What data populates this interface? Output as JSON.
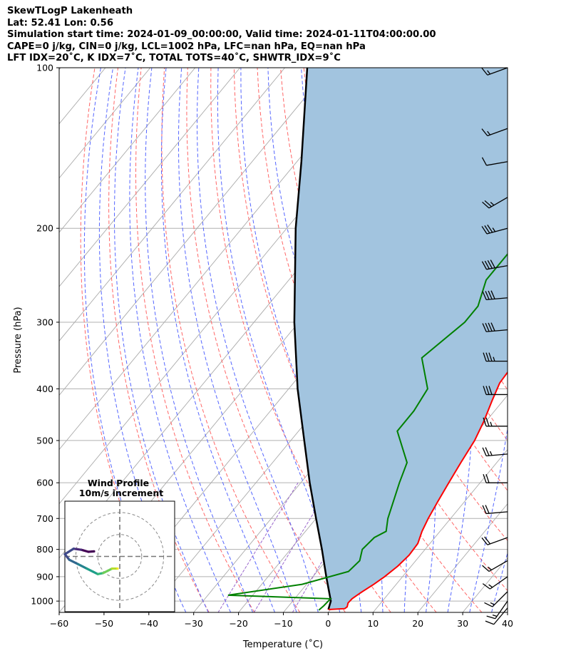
{
  "header": {
    "line1": "SkewTLogP Lakenheath",
    "line2": "Lat: 52.41   Lon: 0.56",
    "line3": "Simulation start time: 2024-01-09_00:00:00, Valid time: 2024-01-11T04:00:00.00",
    "line4": "CAPE=0 j/kg, CIN=0 j/kg, LCL=1002 hPa, LFC=nan hPa, EQ=nan hPa",
    "line5": "LFT IDX=20˚C, K IDX=7˚C, TOTAL TOTS=40˚C, SHWTR_IDX=9˚C"
  },
  "colors": {
    "temperature": "#ff0000",
    "dewpoint": "#008000",
    "parcel": "#000000",
    "shade": "#a2c4df",
    "dry_adiabat": "#ff6666",
    "moist_adiabat": "#5566ff",
    "mixing_ratio": "#9966cc",
    "isotherm": "#aaaaaa"
  },
  "chart_data": [
    {
      "type": "line",
      "title": "",
      "xlabel": "Temperature (˚C)",
      "ylabel": "Pressure (hPa)",
      "xlim": [
        -60,
        40
      ],
      "ylim": [
        1050,
        100
      ],
      "yscale": "log",
      "grid": true,
      "x_ticks": [
        "−60",
        "−50",
        "−40",
        "−30",
        "−20",
        "−10",
        "0",
        "10",
        "20",
        "30",
        "40"
      ],
      "x_tick_values": [
        -60,
        -50,
        -40,
        -30,
        -20,
        -10,
        0,
        10,
        20,
        30,
        40
      ],
      "y_ticks": [
        "100",
        "200",
        "300",
        "400",
        "500",
        "600",
        "700",
        "800",
        "900",
        "1000"
      ],
      "y_tick_values": [
        100,
        200,
        300,
        400,
        500,
        600,
        700,
        800,
        900,
        1000
      ],
      "series": [
        {
          "name": "",
          "role": "temperature",
          "points": [
            [
              1037,
              -0.5
            ],
            [
              1033,
              3
            ],
            [
              1025,
              3.2
            ],
            [
              1008,
              2.7
            ],
            [
              990,
              2.8
            ],
            [
              965,
              3.6
            ],
            [
              930,
              5
            ],
            [
              900,
              6
            ],
            [
              860,
              7
            ],
            [
              820,
              7.5
            ],
            [
              780,
              7.3
            ],
            [
              740,
              6
            ],
            [
              700,
              5
            ],
            [
              650,
              4
            ],
            [
              600,
              3
            ],
            [
              550,
              2
            ],
            [
              500,
              1
            ],
            [
              460,
              -0.5
            ],
            [
              420,
              -2.5
            ],
            [
              390,
              -4
            ],
            [
              350,
              -4.5
            ],
            [
              300,
              -6
            ],
            [
              260,
              -7.5
            ],
            [
              240,
              -6.5
            ],
            [
              200,
              -3
            ],
            [
              180,
              0
            ],
            [
              160,
              2
            ],
            [
              140,
              4
            ],
            [
              120,
              7
            ],
            [
              110,
              9
            ],
            [
              100,
              11
            ]
          ]
        },
        {
          "name": "",
          "role": "dewpoint",
          "points": [
            [
              1040,
              -2.5
            ],
            [
              1020,
              -2.2
            ],
            [
              990,
              -2
            ],
            [
              975,
              -25.5
            ],
            [
              930,
              -11
            ],
            [
              880,
              -3
            ],
            [
              840,
              -2.5
            ],
            [
              800,
              -4
            ],
            [
              760,
              -3.5
            ],
            [
              740,
              -2
            ],
            [
              700,
              -4
            ],
            [
              600,
              -8
            ],
            [
              550,
              -10
            ],
            [
              480,
              -18
            ],
            [
              440,
              -18
            ],
            [
              400,
              -19
            ],
            [
              350,
              -26
            ],
            [
              300,
              -23
            ],
            [
              280,
              -23
            ],
            [
              250,
              -26
            ],
            [
              215,
              -26
            ],
            [
              190,
              -25
            ],
            [
              175,
              -24
            ],
            [
              160,
              -25
            ],
            [
              150,
              -27
            ],
            [
              100,
              -9
            ]
          ]
        },
        {
          "name": "",
          "role": "parcel",
          "points": [
            [
              1037,
              -0.5
            ],
            [
              1000,
              -1.5
            ],
            [
              900,
              -7
            ],
            [
              800,
              -13
            ],
            [
              700,
              -20
            ],
            [
              600,
              -28
            ],
            [
              500,
              -37
            ],
            [
              400,
              -48
            ],
            [
              300,
              -61
            ],
            [
              200,
              -78
            ],
            [
              150,
              -89
            ],
            [
              100,
              -105
            ]
          ]
        }
      ]
    },
    {
      "type": "scatter",
      "title": "Wind Profile",
      "subtitle": "10m/s increment",
      "xlim": [
        -25,
        25
      ],
      "ylim": [
        -25,
        25
      ],
      "rings": [
        10,
        20
      ],
      "hodograph": [
        [
          -11.7,
          2.3
        ],
        [
          -14.3,
          2.1
        ],
        [
          -17.5,
          3
        ],
        [
          -21,
          3.5
        ],
        [
          -25,
          1
        ],
        [
          -23,
          -1.5
        ],
        [
          -19,
          -3.5
        ],
        [
          -15,
          -5.5
        ],
        [
          -12,
          -7
        ],
        [
          -10,
          -8
        ],
        [
          -7.5,
          -7.5
        ],
        [
          -5.5,
          -6.5
        ],
        [
          -3.5,
          -5.5
        ],
        [
          -1,
          -5.5
        ],
        [
          -1,
          -5.5
        ]
      ]
    }
  ],
  "wind_barbs": [
    {
      "p": 100,
      "speed": 15,
      "dir": 250
    },
    {
      "p": 130,
      "speed": 15,
      "dir": 250
    },
    {
      "p": 150,
      "speed": 10,
      "dir": 260
    },
    {
      "p": 175,
      "speed": 25,
      "dir": 240
    },
    {
      "p": 200,
      "speed": 35,
      "dir": 255
    },
    {
      "p": 235,
      "speed": 40,
      "dir": 260
    },
    {
      "p": 270,
      "speed": 40,
      "dir": 265
    },
    {
      "p": 310,
      "speed": 40,
      "dir": 265
    },
    {
      "p": 355,
      "speed": 35,
      "dir": 270
    },
    {
      "p": 410,
      "speed": 30,
      "dir": 270
    },
    {
      "p": 470,
      "speed": 25,
      "dir": 270
    },
    {
      "p": 530,
      "speed": 25,
      "dir": 265
    },
    {
      "p": 600,
      "speed": 20,
      "dir": 270
    },
    {
      "p": 680,
      "speed": 20,
      "dir": 265
    },
    {
      "p": 760,
      "speed": 20,
      "dir": 250
    },
    {
      "p": 840,
      "speed": 15,
      "dir": 240
    },
    {
      "p": 900,
      "speed": 15,
      "dir": 235
    },
    {
      "p": 960,
      "speed": 15,
      "dir": 225
    },
    {
      "p": 1000,
      "speed": 15,
      "dir": 215
    },
    {
      "p": 1030,
      "speed": 10,
      "dir": 220
    }
  ]
}
